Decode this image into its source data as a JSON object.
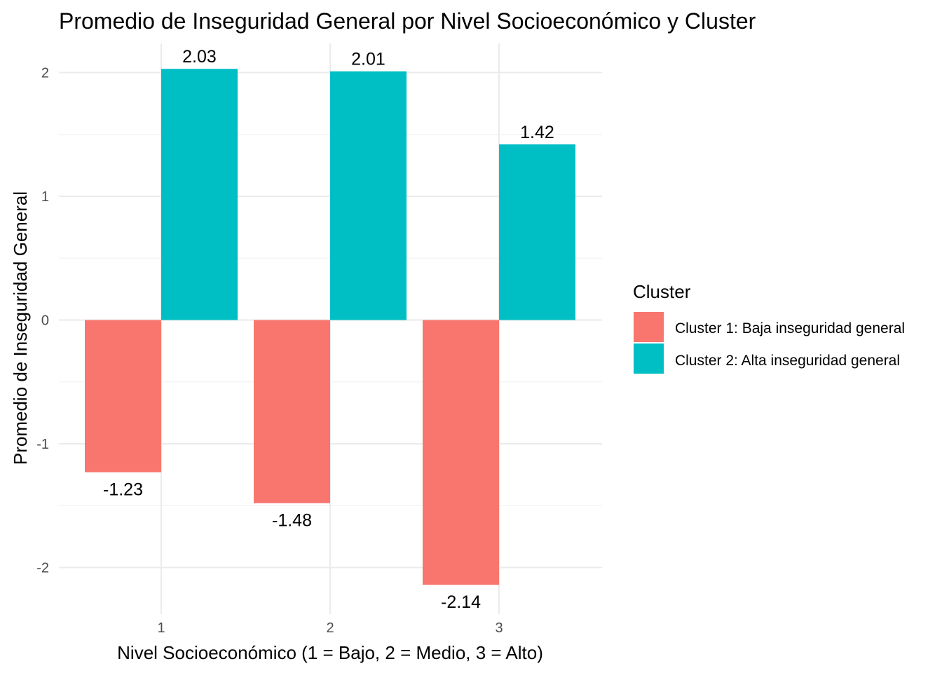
{
  "chart_data": {
    "type": "bar",
    "title": "Promedio de Inseguridad General por Nivel Socioeconómico y Cluster",
    "xlabel": "Nivel Socioeconómico (1 = Bajo, 2 = Medio, 3 = Alto)",
    "ylabel": "Promedio de Inseguridad General",
    "categories": [
      "1",
      "2",
      "3"
    ],
    "series": [
      {
        "name": "Cluster 1: Baja inseguridad general",
        "color": "#F8766D",
        "values": [
          -1.23,
          -1.48,
          -2.14
        ]
      },
      {
        "name": "Cluster 2: Alta inseguridad general",
        "color": "#00BFC4",
        "values": [
          2.03,
          2.01,
          1.42
        ]
      }
    ],
    "data_labels": [
      [
        "-1.23",
        "-1.48",
        "-2.14"
      ],
      [
        "2.03",
        "2.01",
        "1.42"
      ]
    ],
    "ylim": [
      -2.3,
      2.1
    ],
    "yticks": [
      -2,
      -1,
      0,
      1,
      2
    ],
    "ytick_labels": [
      "-2",
      "-1",
      "0",
      "1",
      "2"
    ],
    "grid": true,
    "legend": {
      "title": "Cluster",
      "position": "right"
    }
  }
}
